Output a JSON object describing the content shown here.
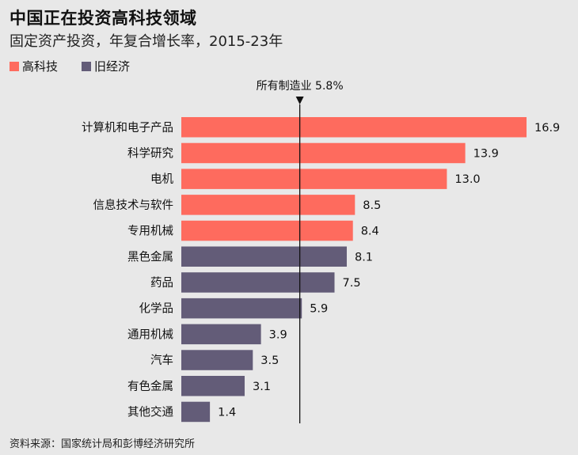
{
  "chart_data": {
    "type": "bar",
    "orientation": "horizontal",
    "title": "中国正在投资高科技领域",
    "subtitle": "固定资产投资，年复合增长率，2015-23年",
    "legend": [
      {
        "name": "高科技",
        "color": "#fe6b5e"
      },
      {
        "name": "旧经济",
        "color": "#635c78"
      }
    ],
    "categories": [
      "计算机和电子产品",
      "科学研究",
      "电机",
      "信息技术与软件",
      "专用机械",
      "黑色金属",
      "药品",
      "化学品",
      "通用机械",
      "汽车",
      "有色金属",
      "其他交通"
    ],
    "values": [
      16.9,
      13.9,
      13.0,
      8.5,
      8.4,
      8.1,
      7.5,
      5.9,
      3.9,
      3.5,
      3.1,
      1.4
    ],
    "value_labels": [
      "16.9",
      "13.9",
      "13.0",
      "8.5",
      "8.4",
      "8.1",
      "7.5",
      "5.9",
      "3.9",
      "3.5",
      "3.1",
      "1.4"
    ],
    "groups": [
      "高科技",
      "高科技",
      "高科技",
      "高科技",
      "高科技",
      "旧经济",
      "旧经济",
      "旧经济",
      "旧经济",
      "旧经济",
      "旧经济",
      "旧经济"
    ],
    "reference_line": {
      "label": "所有制造业 5.8%",
      "value": 5.8
    },
    "xlim": [
      0,
      16.9
    ],
    "source": "资料来源：国家统计局和彭博经济研究所"
  }
}
